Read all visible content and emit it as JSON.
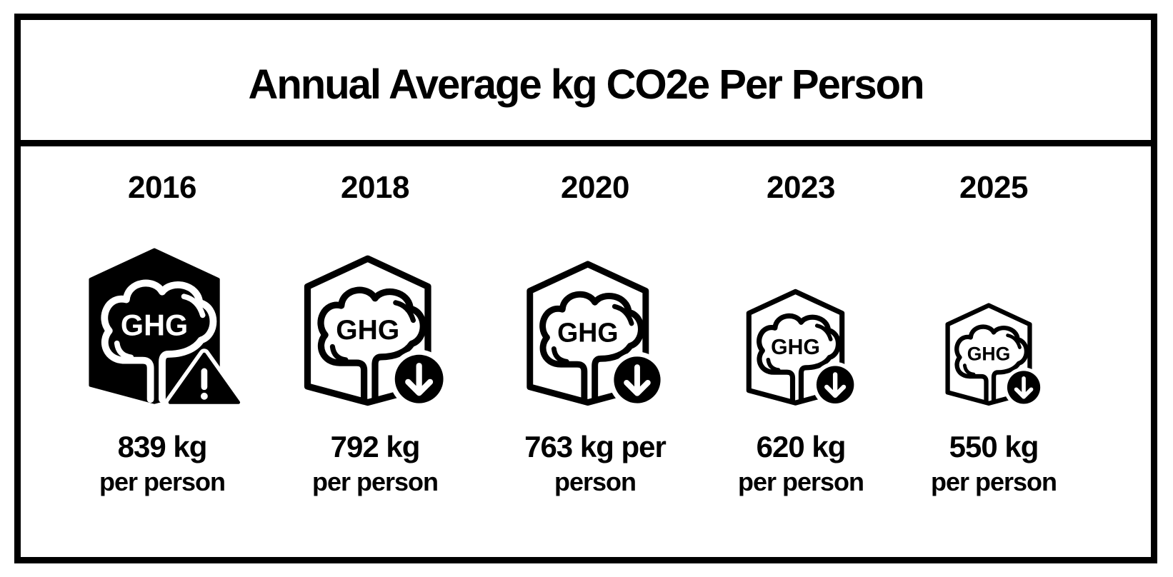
{
  "chart_data": {
    "type": "pictogram",
    "title": "Annual Average kg CO2e Per Person",
    "unit": "kg CO2e per person",
    "categories": [
      "2016",
      "2018",
      "2020",
      "2023",
      "2025"
    ],
    "values": [
      839,
      792,
      763,
      620,
      550
    ],
    "labels": [
      {
        "line1": "839 kg",
        "line2": "per person"
      },
      {
        "line1": "792 kg",
        "line2": "per person"
      },
      {
        "line1": "763 kg per",
        "line2": "person"
      },
      {
        "line1": "620 kg",
        "line2": "per person"
      },
      {
        "line1": "550 kg",
        "line2": "per person"
      }
    ],
    "icons": [
      {
        "name": "ghg-cloud-warning-icon",
        "text": "GHG",
        "style": "filled",
        "badge": "warning"
      },
      {
        "name": "ghg-cloud-decrease-icon",
        "text": "GHG",
        "style": "outline",
        "badge": "arrow-down"
      },
      {
        "name": "ghg-cloud-decrease-icon",
        "text": "GHG",
        "style": "outline",
        "badge": "arrow-down"
      },
      {
        "name": "ghg-cloud-decrease-icon",
        "text": "GHG",
        "style": "outline",
        "badge": "arrow-down"
      },
      {
        "name": "ghg-cloud-decrease-icon",
        "text": "GHG",
        "style": "outline",
        "badge": "arrow-down"
      }
    ],
    "colors": {
      "ink": "#000000",
      "paper": "#ffffff"
    }
  }
}
